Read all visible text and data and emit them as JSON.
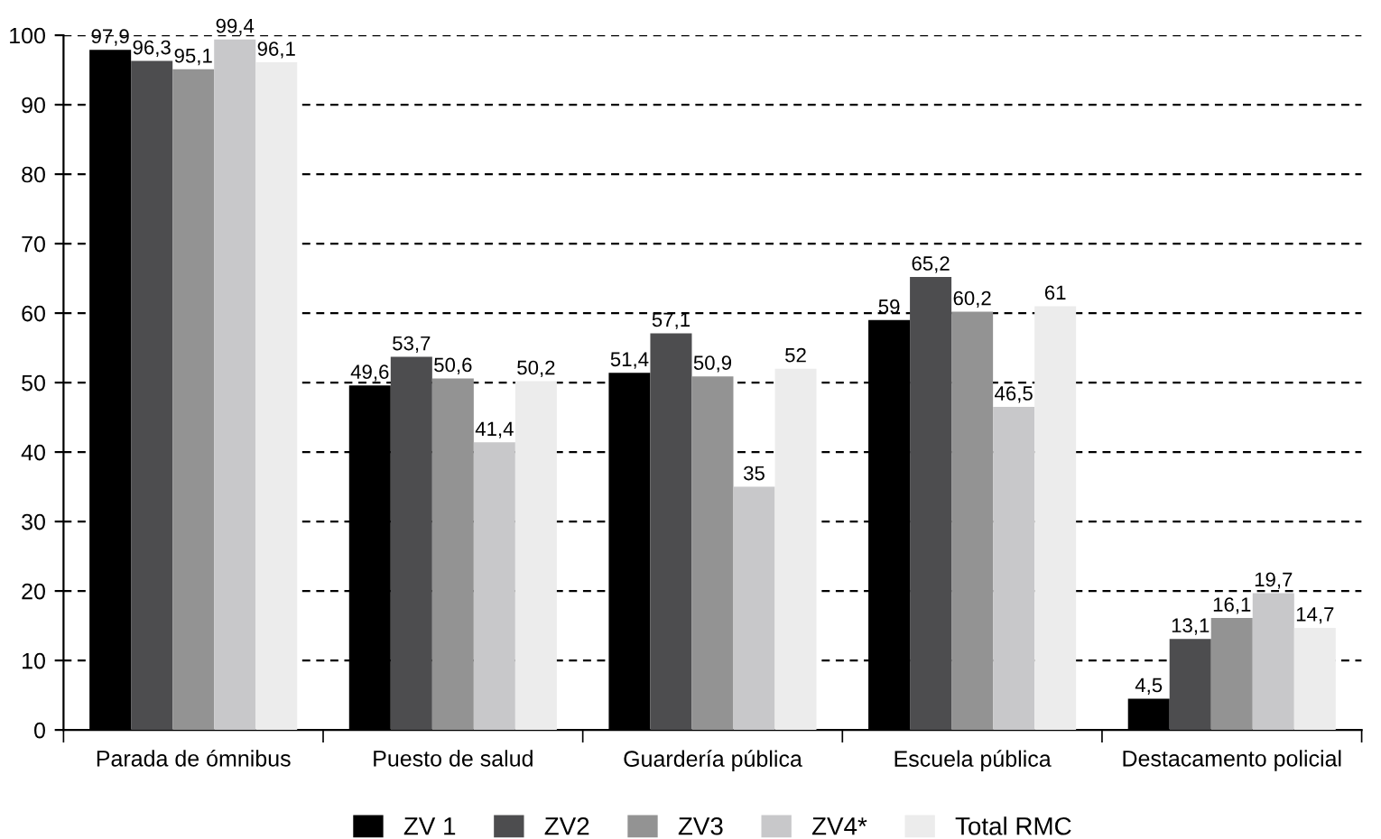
{
  "chart_data": {
    "type": "bar",
    "categories": [
      "Parada de ómnibus",
      "Puesto de salud",
      "Guardería pública",
      "Escuela pública",
      "Destacamento policial"
    ],
    "series": [
      {
        "name": "ZV 1",
        "color": "#000000",
        "values": [
          97.9,
          49.6,
          51.4,
          59,
          4.5
        ],
        "value_labels": [
          "97,9",
          "49,6",
          "51,4",
          "59",
          "4,5"
        ]
      },
      {
        "name": "ZV2",
        "color": "#4d4d4f",
        "values": [
          96.3,
          53.7,
          57.1,
          65.2,
          13.1
        ],
        "value_labels": [
          "96,3",
          "53,7",
          "57,1",
          "65,2",
          "13,1"
        ]
      },
      {
        "name": "ZV3",
        "color": "#939393",
        "values": [
          95.1,
          50.6,
          50.9,
          60.2,
          16.1
        ],
        "value_labels": [
          "95,1",
          "50,6",
          "50,9",
          "60,2",
          "16,1"
        ]
      },
      {
        "name": "ZV4*",
        "color": "#c8c8ca",
        "values": [
          99.4,
          41.4,
          35,
          46.5,
          19.7
        ],
        "value_labels": [
          "99,4",
          "41,4",
          "35",
          "46,5",
          "19,7"
        ]
      },
      {
        "name": "Total RMC",
        "color": "#ececec",
        "values": [
          96.1,
          50.2,
          52,
          61,
          14.7
        ],
        "value_labels": [
          "96,1",
          "50,2",
          "52",
          "61",
          "14,7"
        ]
      }
    ],
    "ylim": [
      0,
      100
    ],
    "yticks": [
      0,
      10,
      20,
      30,
      40,
      50,
      60,
      70,
      80,
      90,
      100
    ],
    "grid": "y",
    "legend": "bottom"
  }
}
